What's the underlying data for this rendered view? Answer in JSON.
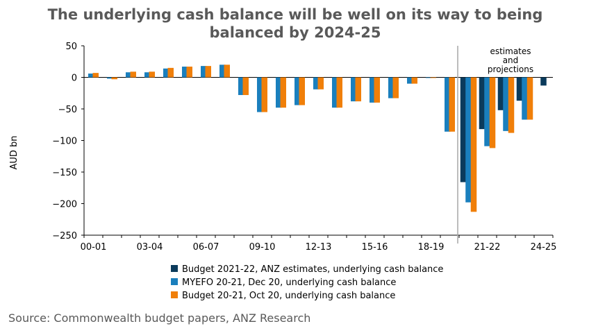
{
  "chart_data": {
    "type": "bar",
    "title_lines": [
      "The underlying cash balance will be well on its way to being",
      "balanced by 2024-25"
    ],
    "ylabel": "AUD bn",
    "ylim": [
      -250,
      50
    ],
    "yticks": [
      50,
      0,
      -50,
      -100,
      -150,
      -200,
      -250
    ],
    "categories": [
      "00-01",
      "01-02",
      "02-03",
      "03-04",
      "04-05",
      "05-06",
      "06-07",
      "07-08",
      "08-09",
      "09-10",
      "10-11",
      "11-12",
      "12-13",
      "13-14",
      "14-15",
      "15-16",
      "16-17",
      "17-18",
      "18-19",
      "19-20",
      "20-21",
      "21-22",
      "22-23",
      "23-24",
      "24-25"
    ],
    "xtick_labels": [
      "00-01",
      "",
      "",
      "03-04",
      "",
      "",
      "06-07",
      "",
      "",
      "09-10",
      "",
      "",
      "12-13",
      "",
      "",
      "15-16",
      "",
      "",
      "18-19",
      "",
      "",
      "21-22",
      "",
      "",
      "24-25"
    ],
    "series": [
      {
        "name": "Budget 2021-22, ANZ estimates, underlying cash balance",
        "color": "#0b3b5c",
        "values": [
          null,
          null,
          null,
          null,
          null,
          null,
          null,
          null,
          null,
          null,
          null,
          null,
          null,
          null,
          null,
          null,
          null,
          null,
          null,
          null,
          -166,
          -82,
          -52,
          -37,
          -13
        ]
      },
      {
        "name": "MYEFO 20-21, Dec 20, underlying cash balance",
        "color": "#1a7fbd",
        "values": [
          6,
          -2,
          8,
          8,
          14,
          17,
          18,
          20,
          -28,
          -55,
          -48,
          -44,
          -19,
          -48,
          -38,
          -40,
          -33,
          -10,
          -1,
          -86,
          -198,
          -109,
          -85,
          -67,
          null
        ]
      },
      {
        "name": "Budget 20-21, Oct 20, underlying cash balance",
        "color": "#f07f09",
        "values": [
          7,
          -3,
          9,
          9,
          15,
          17,
          18,
          20,
          -28,
          -55,
          -48,
          -44,
          -19,
          -48,
          -38,
          -40,
          -33,
          -10,
          -1,
          -86,
          -213,
          -112,
          -88,
          -67,
          null
        ]
      }
    ],
    "annotation": [
      "estimates",
      "and",
      "projections"
    ],
    "divider_after_index": 19,
    "grid": false,
    "legend_position": "bottom"
  },
  "source": "Source: Commonwealth budget papers, ANZ Research"
}
